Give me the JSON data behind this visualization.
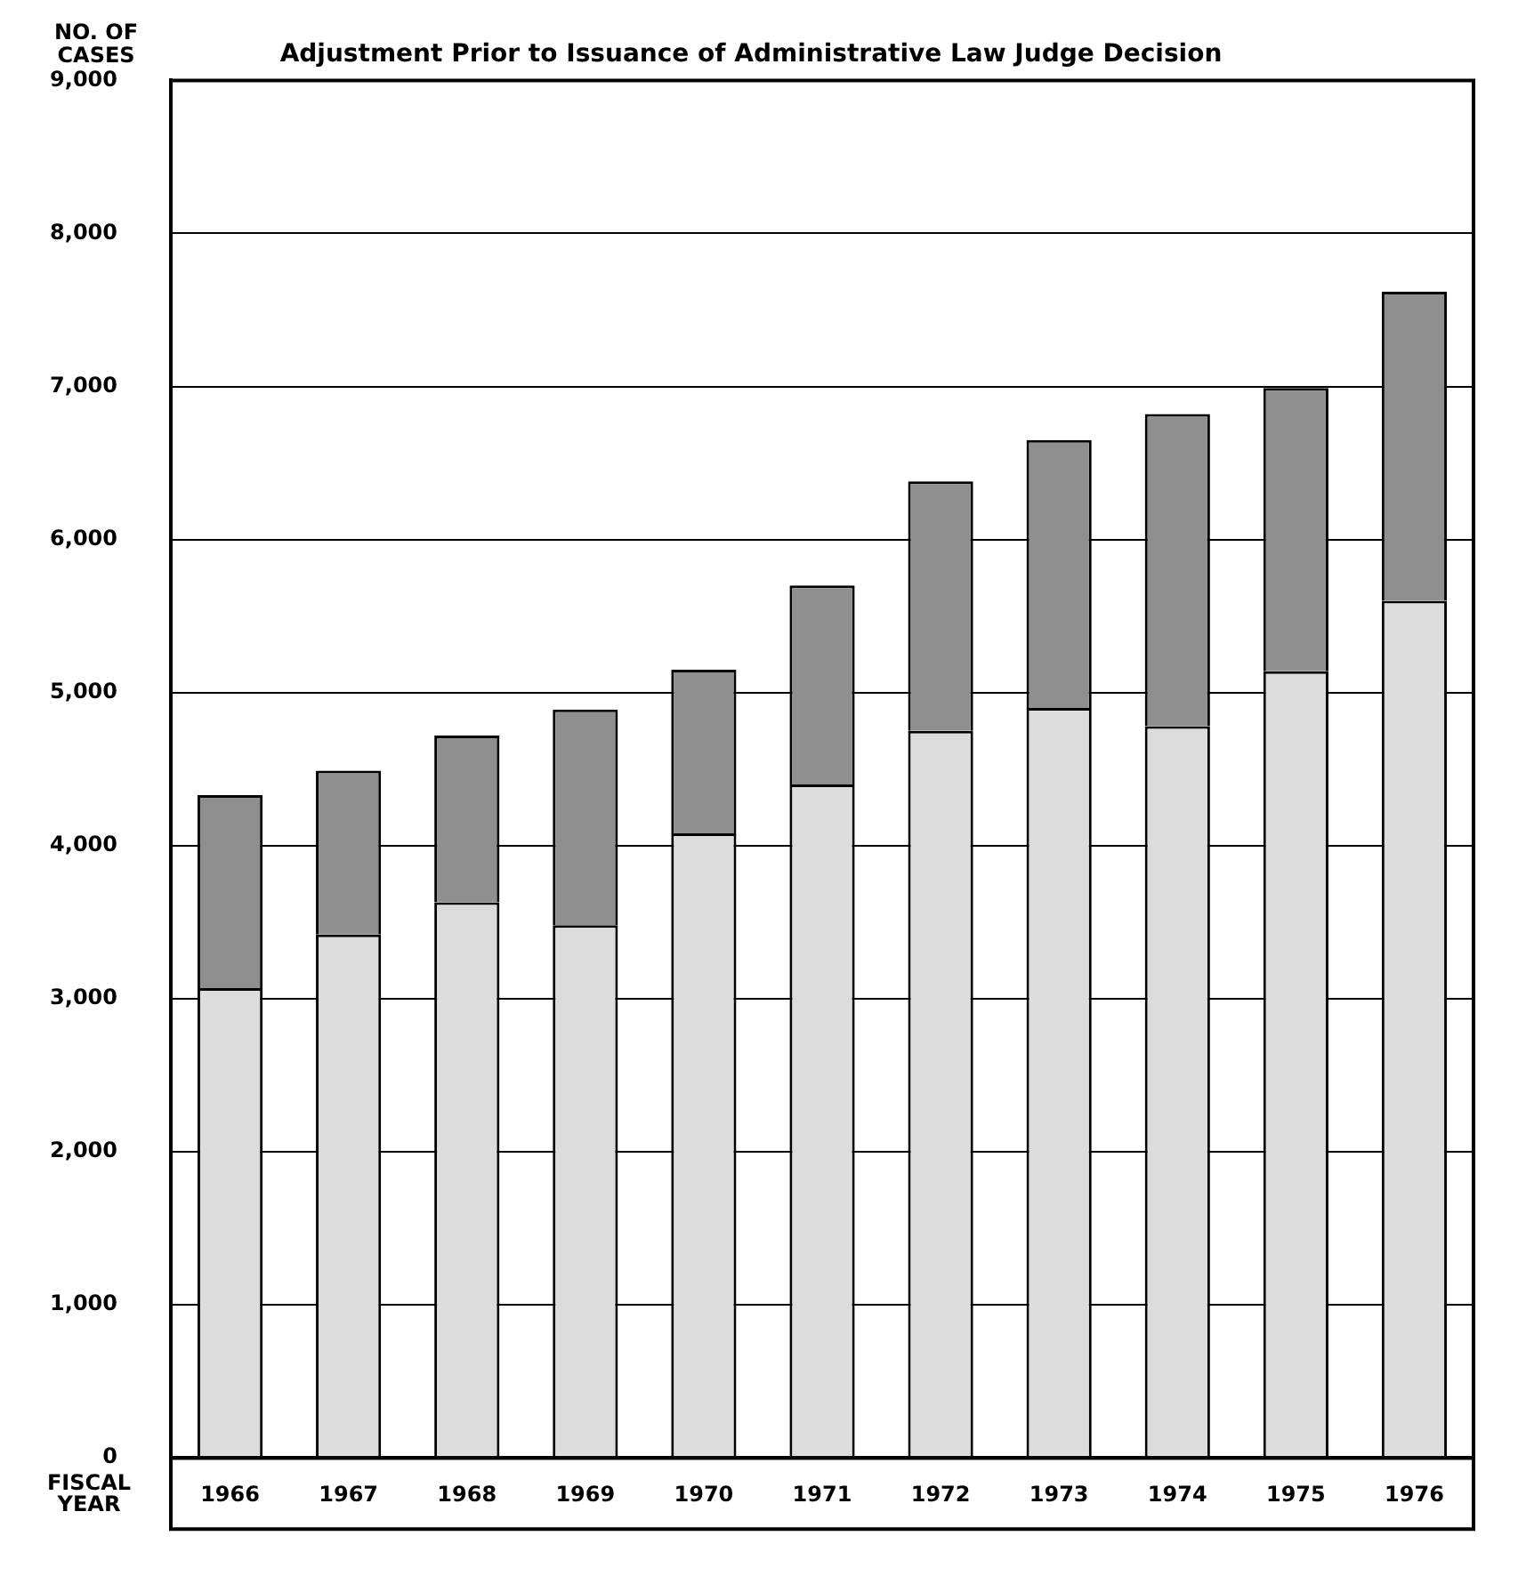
{
  "chart_data": {
    "type": "bar",
    "title": "Adjustment Prior to Issuance of Administrative Law Judge Decision",
    "ylabel": "NO. OF CASES",
    "xlabel": "FISCAL YEAR",
    "categories": [
      "1966",
      "1967",
      "1968",
      "1969",
      "1970",
      "1971",
      "1972",
      "1973",
      "1974",
      "1975",
      "1976"
    ],
    "stacked": true,
    "series": [
      {
        "color": "#dcdcdc",
        "values": [
          3070,
          3420,
          3630,
          3480,
          4080,
          4400,
          4750,
          4900,
          4780,
          5140,
          5600
        ]
      },
      {
        "color": "#8f8f8f",
        "values": [
          1260,
          1070,
          1090,
          1410,
          1070,
          1300,
          1630,
          1750,
          2040,
          1850,
          2020
        ]
      }
    ],
    "ylim": [
      0,
      9000
    ],
    "yticks": [
      {
        "value": 0,
        "label": "0"
      },
      {
        "value": 1000,
        "label": "1,000"
      },
      {
        "value": 2000,
        "label": "2,000"
      },
      {
        "value": 3000,
        "label": "3,000"
      },
      {
        "value": 4000,
        "label": "4,000"
      },
      {
        "value": 5000,
        "label": "5,000"
      },
      {
        "value": 6000,
        "label": "6,000"
      },
      {
        "value": 7000,
        "label": "7,000"
      },
      {
        "value": 8000,
        "label": "8,000"
      },
      {
        "value": 9000,
        "label": "9,000"
      }
    ],
    "grid": "y"
  }
}
